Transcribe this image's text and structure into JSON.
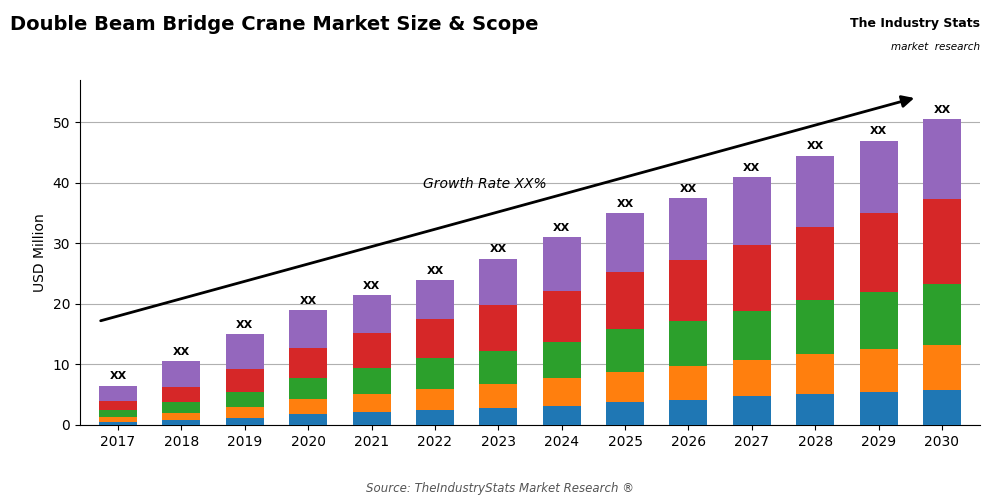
{
  "chart_data": {
    "type": "bar",
    "stacked": true,
    "title": "Double Beam Bridge Crane Market Size & Scope",
    "y_label": "USD Million",
    "source": "Source: TheIndustryStats Market Research ®",
    "annotations": [
      "Growth Rate XX%",
      "The Industry Stats",
      "market  research"
    ],
    "top_labels": [
      "XX",
      "XX",
      "XX",
      "XX",
      "XX",
      "XX",
      "XX",
      "XX",
      "XX",
      "XX",
      "XX",
      "XX",
      "XX",
      "XX"
    ],
    "categories": [
      "2017",
      "2018",
      "2019",
      "2020",
      "2021",
      "2022",
      "2023",
      "2024",
      "2025",
      "2026",
      "2027",
      "2028",
      "2029",
      "2030"
    ],
    "series": [
      {
        "values": [
          0.5,
          0.8,
          1.2,
          1.8,
          2.2,
          2.5,
          2.8,
          3.2,
          3.8,
          4.2,
          4.8,
          5.2,
          5.5,
          5.8
        ]
      },
      {
        "values": [
          0.8,
          1.2,
          1.8,
          2.5,
          3.0,
          3.5,
          4.0,
          4.5,
          5.0,
          5.5,
          6.0,
          6.5,
          7.0,
          7.5
        ]
      },
      {
        "values": [
          1.2,
          1.8,
          2.5,
          3.5,
          4.2,
          5.0,
          5.5,
          6.0,
          7.0,
          7.5,
          8.0,
          9.0,
          9.5,
          10.0
        ]
      },
      {
        "values": [
          1.5,
          2.5,
          3.8,
          5.0,
          5.8,
          6.5,
          7.5,
          8.5,
          9.5,
          10.0,
          11.0,
          12.0,
          13.0,
          14.0
        ]
      },
      {
        "values": [
          2.5,
          4.2,
          5.7,
          6.2,
          6.3,
          6.5,
          7.7,
          8.8,
          9.7,
          10.3,
          11.2,
          11.8,
          12.0,
          13.2
        ]
      }
    ],
    "ylim": [
      0,
      57
    ],
    "yticks": [
      0,
      10,
      20,
      30,
      40,
      50
    ],
    "grid": true
  }
}
